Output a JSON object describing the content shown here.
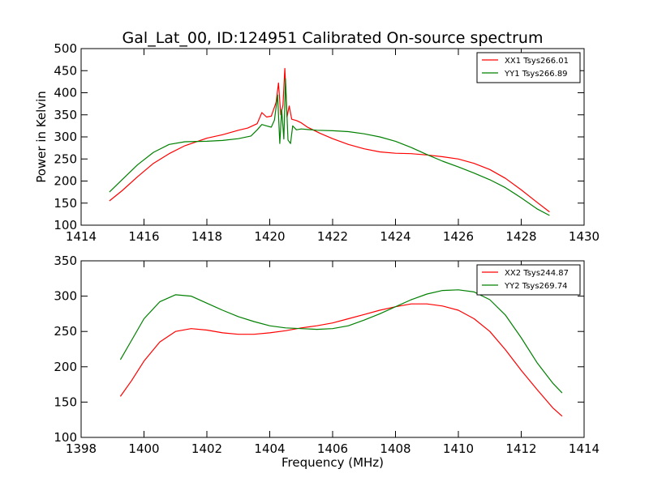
{
  "figure_title": "Gal_Lat_00, ID:124951 Calibrated On-source spectrum",
  "chart_data": [
    {
      "type": "line",
      "title": "Gal_Lat_00, ID:124951 Calibrated On-source spectrum",
      "xlabel": "",
      "ylabel": "Power in Kelvin",
      "xlim": [
        1414,
        1430
      ],
      "ylim": [
        100,
        500
      ],
      "xticks": [
        1414,
        1416,
        1418,
        1420,
        1422,
        1424,
        1426,
        1428,
        1430
      ],
      "yticks": [
        100,
        150,
        200,
        250,
        300,
        350,
        400,
        450,
        500
      ],
      "grid": false,
      "legend_position": "top-right",
      "series": [
        {
          "name": "XX1 Tsys266.01",
          "color": "#ff0000",
          "x": [
            1414.9,
            1415.3,
            1415.8,
            1416.3,
            1416.8,
            1417.3,
            1418.0,
            1418.5,
            1419.0,
            1419.3,
            1419.6,
            1419.75,
            1419.9,
            1420.05,
            1420.2,
            1420.28,
            1420.35,
            1420.42,
            1420.48,
            1420.55,
            1420.62,
            1420.7,
            1420.85,
            1421.0,
            1421.2,
            1421.6,
            1422.0,
            1422.5,
            1423.0,
            1423.5,
            1424.0,
            1424.5,
            1425.0,
            1425.5,
            1426.0,
            1426.5,
            1427.0,
            1427.5,
            1428.0,
            1428.5,
            1428.9
          ],
          "y": [
            155,
            178,
            210,
            240,
            262,
            280,
            297,
            305,
            315,
            320,
            330,
            355,
            345,
            347,
            378,
            422,
            350,
            372,
            455,
            345,
            370,
            340,
            337,
            332,
            322,
            308,
            296,
            283,
            273,
            266,
            263,
            262,
            259,
            255,
            250,
            240,
            226,
            206,
            180,
            152,
            130
          ]
        },
        {
          "name": "YY1 Tsys266.89",
          "color": "#008000",
          "x": [
            1414.9,
            1415.3,
            1415.8,
            1416.3,
            1416.8,
            1417.3,
            1418.0,
            1418.5,
            1419.0,
            1419.4,
            1419.6,
            1419.75,
            1419.9,
            1420.05,
            1420.15,
            1420.25,
            1420.32,
            1420.38,
            1420.45,
            1420.5,
            1420.58,
            1420.66,
            1420.73,
            1420.85,
            1421.0,
            1421.5,
            1422.0,
            1422.5,
            1423.0,
            1423.5,
            1424.0,
            1424.5,
            1425.0,
            1425.5,
            1426.0,
            1426.5,
            1427.0,
            1427.5,
            1428.0,
            1428.5,
            1428.9
          ],
          "y": [
            175,
            203,
            237,
            265,
            283,
            289,
            290,
            292,
            296,
            302,
            316,
            328,
            325,
            322,
            338,
            395,
            285,
            362,
            295,
            432,
            293,
            285,
            325,
            316,
            318,
            315,
            314,
            312,
            307,
            300,
            290,
            276,
            260,
            245,
            232,
            218,
            203,
            185,
            162,
            137,
            122
          ]
        }
      ]
    },
    {
      "type": "line",
      "title": "",
      "xlabel": "Frequency (MHz)",
      "ylabel": "",
      "xlim": [
        1398,
        1414
      ],
      "ylim": [
        100,
        350
      ],
      "xticks": [
        1398,
        1400,
        1402,
        1404,
        1406,
        1408,
        1410,
        1412,
        1414
      ],
      "yticks": [
        100,
        150,
        200,
        250,
        300,
        350
      ],
      "grid": false,
      "legend_position": "top-right",
      "series": [
        {
          "name": "XX2 Tsys244.87",
          "color": "#ff0000",
          "x": [
            1399.25,
            1399.6,
            1400.0,
            1400.5,
            1401.0,
            1401.5,
            1402.0,
            1402.5,
            1403.0,
            1403.5,
            1404.0,
            1404.5,
            1405.0,
            1405.5,
            1406.0,
            1406.5,
            1407.0,
            1407.5,
            1408.0,
            1408.5,
            1409.0,
            1409.5,
            1410.0,
            1410.5,
            1411.0,
            1411.5,
            1412.0,
            1412.5,
            1413.0,
            1413.3
          ],
          "y": [
            158,
            180,
            208,
            235,
            250,
            254,
            252,
            248,
            246,
            246,
            248,
            251,
            255,
            258,
            262,
            268,
            274,
            280,
            285,
            289,
            289,
            286,
            280,
            268,
            250,
            224,
            195,
            168,
            142,
            130
          ]
        },
        {
          "name": "YY2 Tsys269.74",
          "color": "#008000",
          "x": [
            1399.25,
            1399.6,
            1400.0,
            1400.5,
            1401.0,
            1401.5,
            1402.0,
            1402.5,
            1403.0,
            1403.5,
            1404.0,
            1404.5,
            1405.0,
            1405.5,
            1406.0,
            1406.5,
            1407.0,
            1407.5,
            1408.0,
            1408.5,
            1409.0,
            1409.5,
            1410.0,
            1410.5,
            1411.0,
            1411.5,
            1412.0,
            1412.5,
            1413.0,
            1413.3
          ],
          "y": [
            210,
            237,
            268,
            292,
            302,
            300,
            290,
            280,
            271,
            264,
            258,
            255,
            254,
            253,
            254,
            258,
            266,
            275,
            285,
            295,
            303,
            308,
            309,
            306,
            295,
            273,
            241,
            206,
            177,
            163
          ]
        }
      ]
    }
  ]
}
